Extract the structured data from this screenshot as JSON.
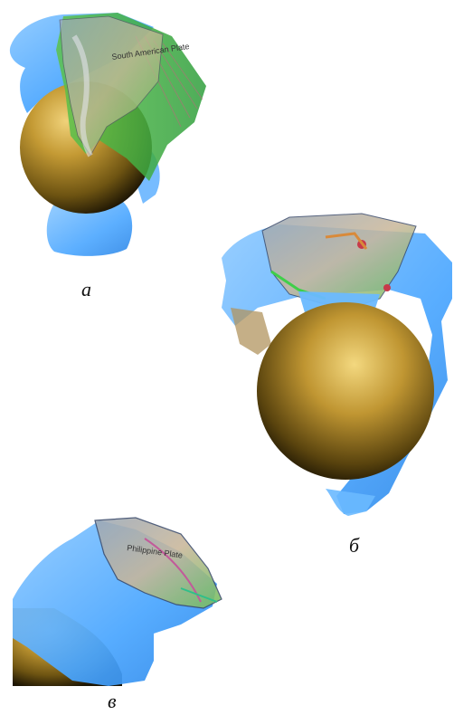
{
  "figure": {
    "panels": [
      {
        "id": "a",
        "caption": "а",
        "map_label": "South American Plate"
      },
      {
        "id": "b",
        "caption": "б",
        "map_label": ""
      },
      {
        "id": "c",
        "caption": "в",
        "map_label": "Philippine Plate"
      }
    ],
    "colors": {
      "slab_blue": "#4aa6ff",
      "slab_blue_light": "#7cc2ff",
      "core_gold": "#b8912e",
      "core_dark": "#2a1f06",
      "surface_green": "#3fcf4a",
      "surface_tan": "#c9b79a"
    }
  }
}
